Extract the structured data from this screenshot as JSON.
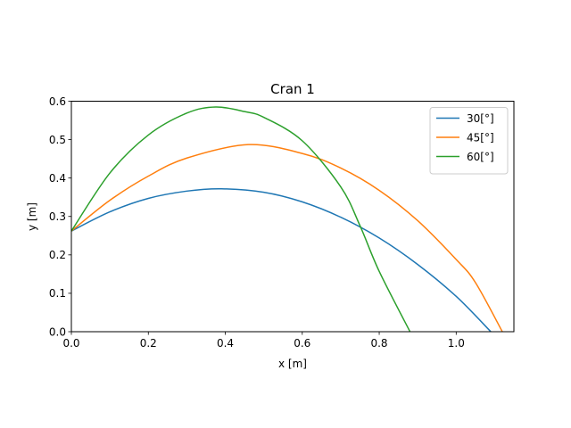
{
  "chart_data": {
    "type": "line",
    "title": "Cran 1",
    "xlabel": "x [m]",
    "ylabel": "y [m]",
    "xlim": [
      0,
      1.15
    ],
    "ylim": [
      0,
      0.6
    ],
    "xticks": [
      0.0,
      0.2,
      0.4,
      0.6,
      0.8,
      1.0
    ],
    "xtick_labels": [
      "0.0",
      "0.2",
      "0.4",
      "0.6",
      "0.8",
      "1.0"
    ],
    "yticks": [
      0.0,
      0.1,
      0.2,
      0.3,
      0.4,
      0.5,
      0.6
    ],
    "ytick_labels": [
      "0.0",
      "0.1",
      "0.2",
      "0.3",
      "0.4",
      "0.5",
      "0.6"
    ],
    "grid": false,
    "legend_position": "top-right",
    "series": [
      {
        "name": "30[°]",
        "color": "#1f77b4",
        "x": [
          0.0,
          0.1,
          0.2,
          0.3,
          0.39,
          0.5,
          0.6,
          0.7,
          0.8,
          0.9,
          1.0,
          1.09
        ],
        "y": [
          0.262,
          0.312,
          0.347,
          0.366,
          0.372,
          0.363,
          0.338,
          0.298,
          0.244,
          0.175,
          0.092,
          0.0
        ]
      },
      {
        "name": "45[°]",
        "color": "#ff7f0e",
        "x": [
          0.0,
          0.1,
          0.2,
          0.3,
          0.46,
          0.6,
          0.7,
          0.8,
          0.9,
          1.0,
          1.05,
          1.12
        ],
        "y": [
          0.262,
          0.342,
          0.405,
          0.452,
          0.487,
          0.464,
          0.426,
          0.368,
          0.289,
          0.188,
          0.128,
          0.0
        ]
      },
      {
        "name": "60[°]",
        "color": "#2ca02c",
        "x": [
          0.0,
          0.1,
          0.2,
          0.3,
          0.375,
          0.45,
          0.5,
          0.6,
          0.7,
          0.75,
          0.8,
          0.88
        ],
        "y": [
          0.262,
          0.413,
          0.512,
          0.569,
          0.585,
          0.573,
          0.558,
          0.497,
          0.377,
          0.276,
          0.157,
          0.0
        ]
      }
    ]
  }
}
